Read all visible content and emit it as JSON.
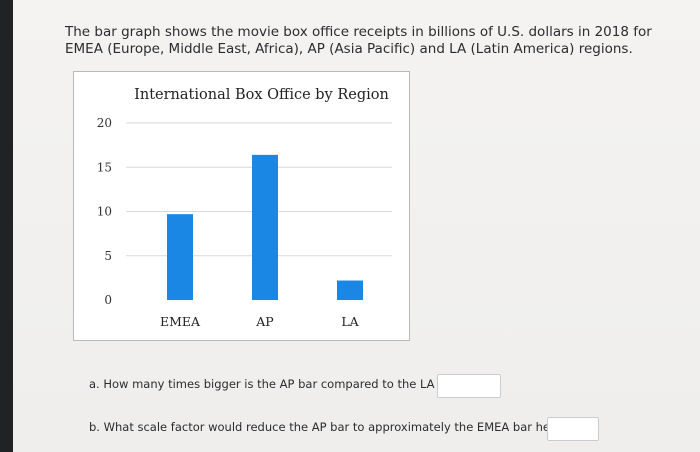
{
  "question_text": "The bar graph shows the movie box office receipts in billions of U.S. dollars in 2018 for EMEA (Europe, Middle East, Africa), AP (Asia Pacific) and LA (Latin America) regions.",
  "colors": {
    "bar": "#1a87e5",
    "grid": "#d9d9d9"
  },
  "chart_data": {
    "type": "bar",
    "title": "International Box Office by Region",
    "categories": [
      "EMEA",
      "AP",
      "LA"
    ],
    "values": [
      9.7,
      16.4,
      2.2
    ],
    "yticks": [
      "20",
      "15",
      "10",
      "5",
      "0"
    ],
    "ylim": [
      0,
      20
    ],
    "grid": true,
    "xlabel": "",
    "ylabel": ""
  },
  "questions": {
    "a": "a. How many times bigger is the AP bar compared to the LA bar?",
    "b": "b. What scale factor would reduce the AP bar to approximately the EMEA bar height?"
  },
  "answers": {
    "a": "",
    "b": ""
  }
}
